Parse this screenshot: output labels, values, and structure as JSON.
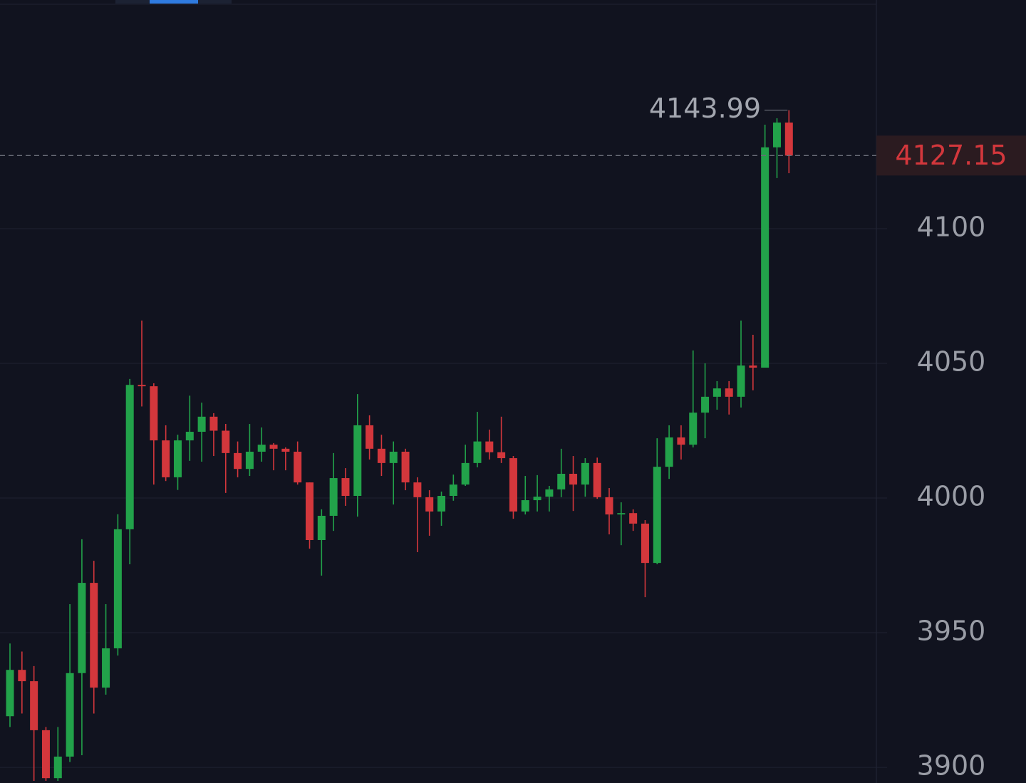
{
  "chart_data": {
    "type": "candlestick",
    "open": [
      3919,
      3936.2,
      3932,
      3913.8,
      3896,
      3904,
      3935,
      3968.5,
      3929.6,
      3944.2,
      3988.4,
      4042,
      4041.5,
      4021.4,
      4007.7,
      4021.4,
      4024.6,
      4030.2,
      4025,
      4016.7,
      4010.8,
      4017.2,
      4019.8,
      4018.3,
      4017.2,
      4005.8,
      3984.4,
      3993.4,
      4007.4,
      4000.8,
      4027,
      4018.3,
      4013,
      4017.2,
      4005.8,
      4000.3,
      3995,
      4000.8,
      4005,
      4013,
      4021,
      4017,
      4014.8,
      3995,
      3999.2,
      4000.5,
      4003.2,
      4009,
      4005,
      4013,
      4000.3,
      3993.9,
      3994.4,
      3990.5,
      3975.9,
      4011.6,
      4022.5,
      4019.8,
      4031.7,
      4037.6,
      4040.7,
      4037.6,
      4049.2,
      4048.4,
      4130.2,
      4139.4
    ],
    "high": [
      3946,
      3943,
      3937.6,
      3915,
      3915,
      3960.6,
      3984.7,
      3976.7,
      3960.6,
      3994,
      4044.2,
      4065.9,
      4042.6,
      4027,
      4023.5,
      4038,
      4035.4,
      4031.5,
      4027.5,
      4021,
      4027.5,
      4026.2,
      4020.4,
      4018.8,
      4021,
      4005.8,
      3995.8,
      4016.7,
      4011.1,
      4038.6,
      4030.7,
      4023.5,
      4021,
      4018.3,
      4007.7,
      4002.9,
      4002.4,
      4008.7,
      4019.8,
      4032,
      4025.4,
      4030.2,
      4015.6,
      4008.2,
      4008.5,
      4004.5,
      4018.3,
      4015.6,
      4014.8,
      4015,
      4003.7,
      3998.4,
      3995.8,
      3991.8,
      4022.2,
      4027,
      4027,
      4054.8,
      4050,
      4043.4,
      4043.4,
      4065.9,
      4060.6,
      4138.6,
      4141,
      4143.99
    ],
    "low": [
      3915,
      3920,
      3895,
      3895,
      3895,
      3902,
      3904.5,
      3920,
      3927,
      3941.5,
      3975.4,
      4034,
      4005,
      4006.3,
      4003,
      4013.8,
      4013.5,
      4015.6,
      4001.9,
      4007.7,
      4008.2,
      4013.5,
      4010.3,
      4010.3,
      4005,
      3981.2,
      3971.2,
      3987.8,
      3997.1,
      3993.1,
      4014.3,
      4008.2,
      3997.6,
      4002.9,
      3979.9,
      3986,
      3989.7,
      3999,
      4004.5,
      4011.4,
      4014.3,
      4013,
      3992.3,
      3993.9,
      3995,
      3995,
      4000.3,
      3995.2,
      4000.5,
      3999.7,
      3986.5,
      3982.5,
      3987.8,
      3963.2,
      3975.4,
      4007.1,
      4014.3,
      4018.8,
      4022.2,
      4032.8,
      4031,
      4033.6,
      4040,
      4048.4,
      4118.8,
      4120.6
    ],
    "close": [
      3936.2,
      3932,
      3913.8,
      3896,
      3904,
      3935,
      3968.5,
      3929.6,
      3944.2,
      3988.4,
      4042,
      4041.5,
      4021.4,
      4007.7,
      4021.4,
      4024.6,
      4030.2,
      4025,
      4016.7,
      4010.8,
      4017.2,
      4019.8,
      4018.3,
      4017.2,
      4005.8,
      3984.4,
      3993.4,
      4007.4,
      4000.8,
      4027,
      4018.3,
      4013,
      4017.2,
      4005.8,
      4000.3,
      3995,
      4000.8,
      4005,
      4013,
      4021,
      4017,
      4014.8,
      3995,
      3999.2,
      4000.5,
      4003.2,
      4009,
      4005,
      4013,
      4000.3,
      3993.9,
      3994.4,
      3990.5,
      3975.9,
      4011.6,
      4022.5,
      4019.8,
      4031.7,
      4037.6,
      4040.7,
      4037.6,
      4049.2,
      4048.4,
      4130.2,
      4139.4,
      4127.15
    ],
    "up_color": "#22a24a",
    "down_color": "#d3373c",
    "ylim": [
      3894.2,
      4184.9
    ],
    "yticks": [
      3900,
      3950,
      4000,
      4050,
      4100
    ],
    "grid": true,
    "last_price": {
      "value": 4127.15,
      "label": "4127.15"
    },
    "max_label": "4143.99"
  }
}
